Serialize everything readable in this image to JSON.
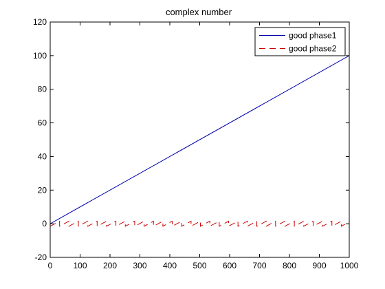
{
  "chart_data": {
    "type": "line",
    "title": "complex number",
    "xlabel": "",
    "ylabel": "",
    "xlim": [
      0,
      1000
    ],
    "ylim": [
      -20,
      120
    ],
    "xticks": [
      0,
      100,
      200,
      300,
      400,
      500,
      600,
      700,
      800,
      900,
      1000
    ],
    "yticks": [
      -20,
      0,
      20,
      40,
      60,
      80,
      100,
      120
    ],
    "grid": false,
    "legend_position": "top-right",
    "series": [
      {
        "name": "good phase1",
        "color": "#0000b0",
        "style": "solid",
        "x": [
          0,
          1000
        ],
        "y": [
          0,
          100
        ]
      },
      {
        "name": "good phase2",
        "color": "#cc0000",
        "style": "dashed",
        "shape": "sawtooth",
        "period": 31.4,
        "min": -1.5,
        "max": 1.5,
        "x_start": 0,
        "x_end": 1000
      }
    ]
  }
}
